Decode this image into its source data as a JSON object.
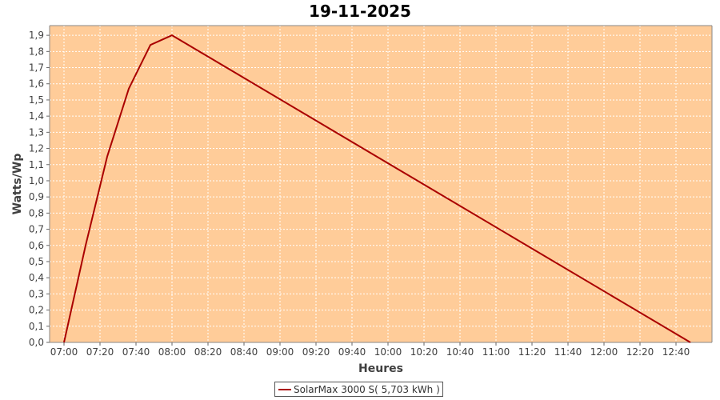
{
  "chart_data": {
    "type": "line",
    "title": "19-11-2025",
    "xlabel": "Heures",
    "ylabel": "Watts/Wp",
    "xlim": [
      "06:52",
      "13:00"
    ],
    "ylim": [
      0,
      1.96
    ],
    "x_ticks": [
      "07:00",
      "07:20",
      "07:40",
      "08:00",
      "08:20",
      "08:40",
      "09:00",
      "09:20",
      "09:40",
      "10:00",
      "10:20",
      "10:40",
      "11:00",
      "11:20",
      "11:40",
      "12:00",
      "12:20",
      "12:40"
    ],
    "y_ticks": [
      "0,0",
      "0,1",
      "0,2",
      "0,3",
      "0,4",
      "0,5",
      "0,6",
      "0,7",
      "0,8",
      "0,9",
      "1,0",
      "1,1",
      "1,2",
      "1,3",
      "1,4",
      "1,5",
      "1,6",
      "1,7",
      "1,8",
      "1,9"
    ],
    "grid": true,
    "legend_position": "bottom",
    "series": [
      {
        "name": "SolarMax 3000 S( 5,703 kWh )",
        "color": "#aa0000",
        "points": [
          {
            "x": "07:00",
            "y": 0.0
          },
          {
            "x": "07:12",
            "y": 0.6
          },
          {
            "x": "07:24",
            "y": 1.15
          },
          {
            "x": "07:36",
            "y": 1.57
          },
          {
            "x": "07:48",
            "y": 1.84
          },
          {
            "x": "08:00",
            "y": 1.9
          },
          {
            "x": "12:48",
            "y": 0.0
          }
        ]
      }
    ],
    "plot_background": "#ffcc99",
    "grid_color": "#ffffff"
  }
}
